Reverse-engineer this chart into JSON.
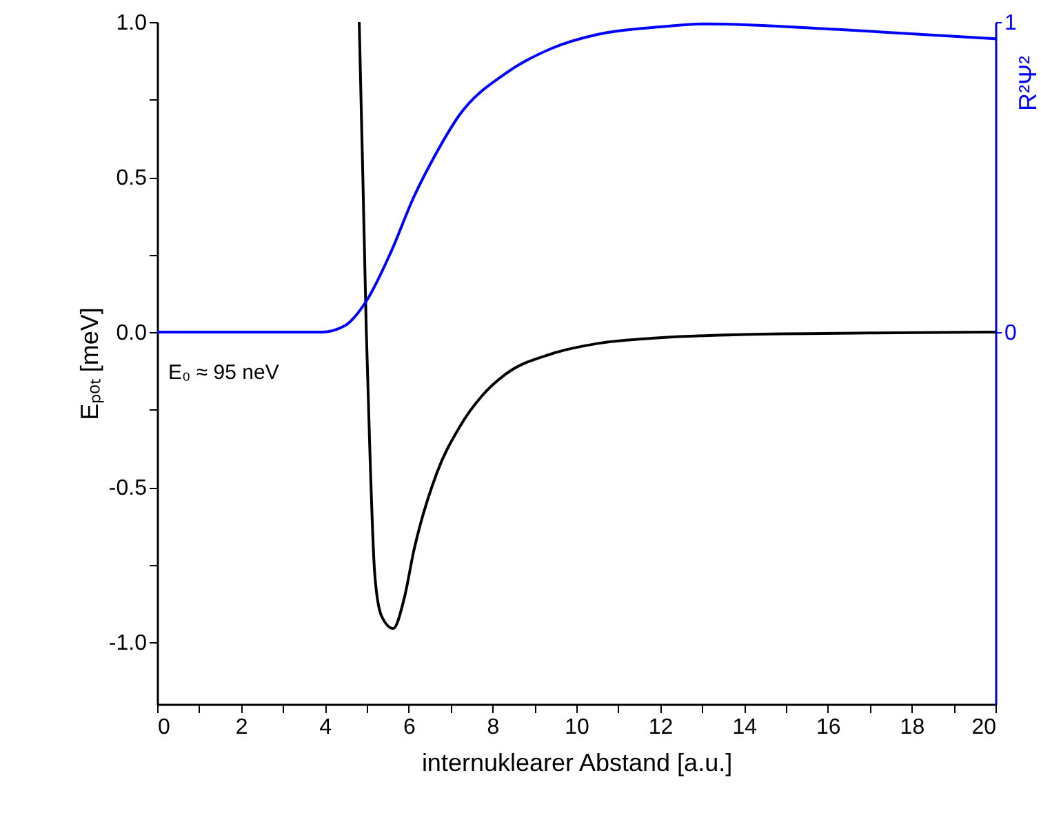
{
  "chart_data": {
    "type": "line",
    "xlabel": "internuklearer Abstand [a.u.]",
    "ylabel": "Eₚₒₜ [meV]",
    "y2label": "R²Ψ²",
    "annotations": [
      "E₀ ≈ 95 neV"
    ],
    "xlim": [
      0,
      20
    ],
    "xticks": [
      0,
      {
        "value": 1,
        "label": null
      },
      2,
      {
        "value": 3,
        "label": null
      },
      4,
      {
        "value": 5,
        "label": null
      },
      6,
      {
        "value": 7,
        "label": null
      },
      8,
      {
        "value": 9,
        "label": null
      },
      10,
      {
        "value": 11,
        "label": null
      },
      12,
      {
        "value": 13,
        "label": null
      },
      14,
      {
        "value": 15,
        "label": null
      },
      16,
      {
        "value": 17,
        "label": null
      },
      18,
      {
        "value": 19,
        "label": null
      },
      20
    ],
    "ylim": [
      -1.2,
      1.0
    ],
    "yticks": [
      {
        "value": -1,
        "label": "-1.0"
      },
      {
        "value": -0.75,
        "label": null
      },
      {
        "value": -0.5,
        "label": "-0.5"
      },
      {
        "value": -0.25,
        "label": null
      },
      {
        "value": 0,
        "label": "0.0"
      },
      {
        "value": 0.25,
        "label": null
      },
      {
        "value": 0.5,
        "label": "0.5"
      },
      {
        "value": 0.75,
        "label": null
      },
      {
        "value": 1,
        "label": "1.0"
      }
    ],
    "y2lim": [
      -1.2,
      1.0
    ],
    "y2ticks": [
      0,
      1
    ],
    "series": [
      {
        "color": "#000000",
        "x": [
          4.82,
          4.91,
          4.99,
          5.08,
          5.19,
          5.35,
          5.63,
          5.9,
          6.12,
          6.67,
          7.21,
          7.76,
          8.31,
          9.41,
          10.5,
          12.04,
          14,
          17,
          20
        ],
        "values": [
          1.0,
          0.48,
          0,
          -0.41,
          -0.78,
          -0.915,
          -0.956,
          -0.855,
          -0.707,
          -0.455,
          -0.307,
          -0.204,
          -0.136,
          -0.07,
          -0.037,
          -0.018,
          -0.008,
          -0.003,
          0
        ]
      },
      {
        "color": "#0000ff",
        "axis": "y2",
        "x": [
          0,
          3.92,
          4.47,
          4.99,
          5.57,
          6.12,
          6.67,
          7.21,
          8.31,
          9.41,
          10.5,
          12.04,
          13.1,
          16.4,
          20
        ],
        "values": [
          0,
          0,
          0.02,
          0.1,
          0.256,
          0.435,
          0.58,
          0.7,
          0.834,
          0.915,
          0.96,
          0.985,
          0.994,
          0.975,
          0.946
        ]
      }
    ]
  }
}
